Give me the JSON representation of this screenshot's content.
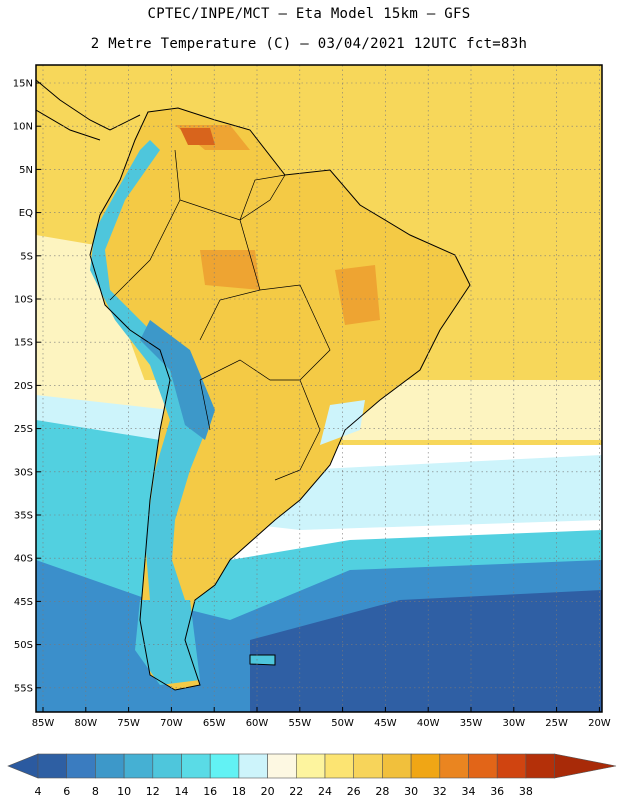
{
  "header": {
    "line1": "CPTEC/INPE/MCT –  Eta Model 15km – GFS",
    "line2": "2 Metre Temperature (C) – 03/04/2021 12UTC fct=83h"
  },
  "map": {
    "lat_ticks": [
      "15N",
      "10N",
      "5N",
      "EQ",
      "5S",
      "10S",
      "15S",
      "20S",
      "25S",
      "30S",
      "35S",
      "40S",
      "45S",
      "50S",
      "55S"
    ],
    "lon_ticks": [
      "85W",
      "80W",
      "75W",
      "70W",
      "65W",
      "60W",
      "55W",
      "50W",
      "45W",
      "40W",
      "35W",
      "30W",
      "25W",
      "20W"
    ]
  },
  "colorbar": {
    "labels": [
      "4",
      "6",
      "8",
      "10",
      "12",
      "14",
      "16",
      "18",
      "20",
      "22",
      "24",
      "26",
      "28",
      "30",
      "32",
      "34",
      "36",
      "38"
    ],
    "colors": [
      "#2e5fa3",
      "#3a7cc0",
      "#3d98c9",
      "#45b0d3",
      "#4ec6dc",
      "#5adbe6",
      "#62f2f4",
      "#cdf4fb",
      "#fdf8e2",
      "#fdf49e",
      "#fce472",
      "#f7d45a",
      "#f1c03c",
      "#f0a615",
      "#ea8520",
      "#e26518",
      "#d04410",
      "#b43009"
    ],
    "left_color": "#2b5aa0",
    "right_color": "#a82a08"
  },
  "fields": {
    "ocean_far_south": "#2f5fa4",
    "ocean_south": "#3b8fcb",
    "ocean_mid": "#52d0e0",
    "ocean_cool": "#cdf4fb",
    "ocean_mild": "#fdf4c0",
    "ocean_warm": "#f7d75a",
    "land_warm": "#f4ca45",
    "land_hot": "#eea432",
    "land_very_hot": "#d8641c",
    "andes": "#4ec6dc",
    "andes_high": "#3d98c9",
    "coast": "#000000"
  }
}
